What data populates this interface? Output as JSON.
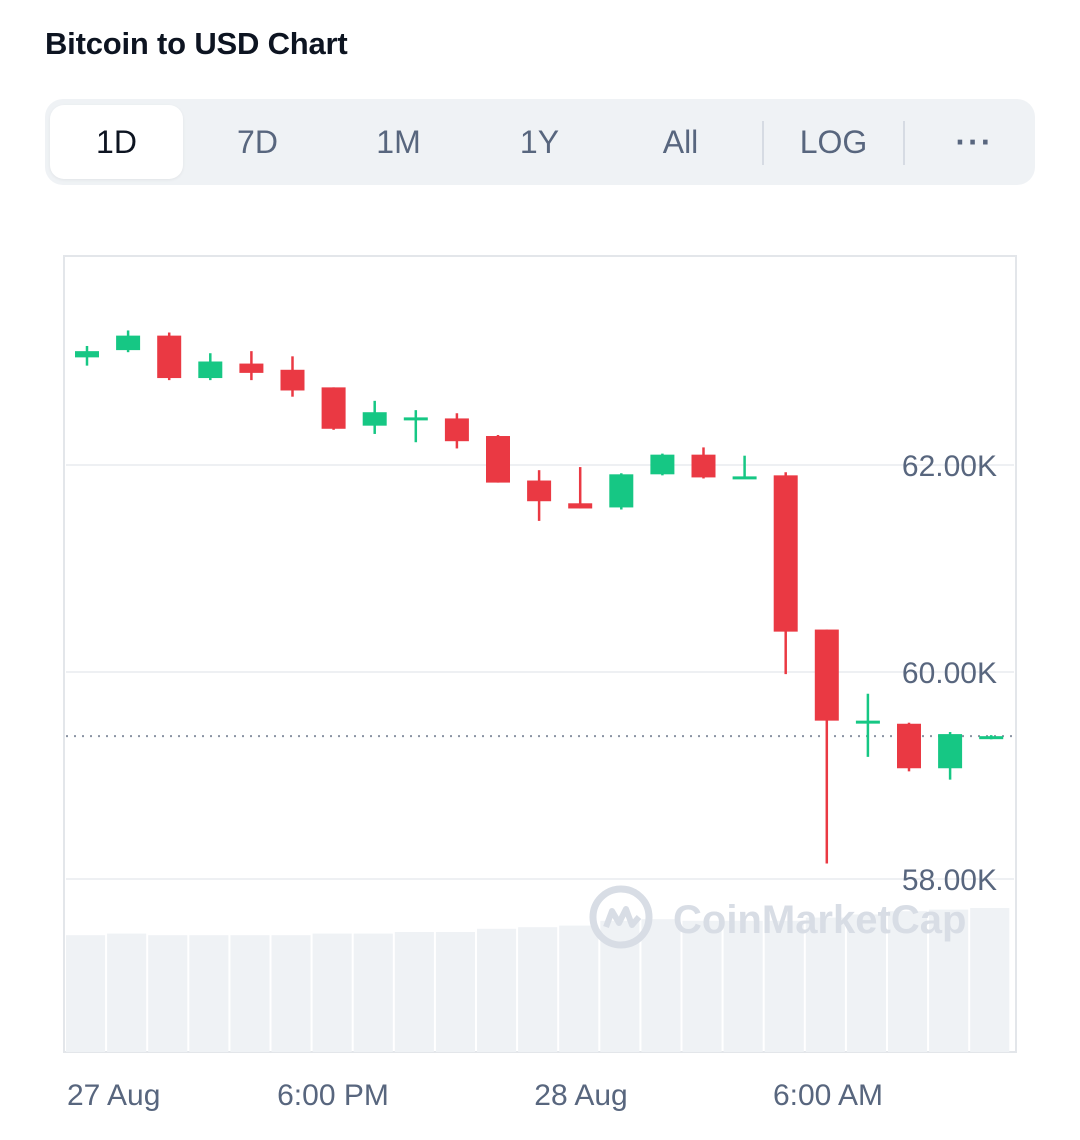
{
  "header": {
    "title": "Bitcoin to USD Chart"
  },
  "range_tabs": [
    {
      "label": "1D",
      "active": true
    },
    {
      "label": "7D",
      "active": false
    },
    {
      "label": "1M",
      "active": false
    },
    {
      "label": "1Y",
      "active": false
    },
    {
      "label": "All",
      "active": false
    }
  ],
  "scale_toggle": {
    "label": "LOG"
  },
  "more_menu": {
    "label": "···",
    "icon": "more-horizontal-icon"
  },
  "watermark": {
    "text": "CoinMarketCap",
    "icon": "coinmarketcap-logo-icon"
  },
  "colors": {
    "up": "#16c784",
    "down": "#ea3943",
    "grid": "#eef0f3",
    "axis_text": "#58667e",
    "volume": "#eff2f5"
  },
  "chart_data": {
    "type": "candlestick",
    "title": "Bitcoin to USD Chart",
    "y_axis": {
      "side": "right",
      "ticks": [
        "62.00K",
        "60.00K",
        "58.00K"
      ],
      "tick_values": [
        62000,
        60000,
        58000
      ],
      "range": [
        57700,
        64000
      ]
    },
    "x_axis": {
      "ticks": [
        "27 Aug",
        "6:00 PM",
        "28 Aug",
        "6:00 AM"
      ]
    },
    "current_price_line": 59380,
    "grid": true,
    "candles": [
      {
        "o": 63040,
        "h": 63150,
        "l": 62960,
        "c": 63100
      },
      {
        "o": 63110,
        "h": 63300,
        "l": 63090,
        "c": 63250
      },
      {
        "o": 63250,
        "h": 63280,
        "l": 62820,
        "c": 62840
      },
      {
        "o": 62840,
        "h": 63080,
        "l": 62820,
        "c": 63000
      },
      {
        "o": 62980,
        "h": 63100,
        "l": 62820,
        "c": 62890
      },
      {
        "o": 62920,
        "h": 63050,
        "l": 62660,
        "c": 62720
      },
      {
        "o": 62750,
        "h": 62750,
        "l": 62340,
        "c": 62350
      },
      {
        "o": 62380,
        "h": 62620,
        "l": 62300,
        "c": 62510
      },
      {
        "o": 62460,
        "h": 62530,
        "l": 62220,
        "c": 62460
      },
      {
        "o": 62450,
        "h": 62500,
        "l": 62160,
        "c": 62230
      },
      {
        "o": 62280,
        "h": 62290,
        "l": 61830,
        "c": 61830
      },
      {
        "o": 61850,
        "h": 61950,
        "l": 61460,
        "c": 61650
      },
      {
        "o": 61630,
        "h": 61980,
        "l": 61580,
        "c": 61580
      },
      {
        "o": 61590,
        "h": 61920,
        "l": 61570,
        "c": 61910
      },
      {
        "o": 61910,
        "h": 62110,
        "l": 61900,
        "c": 62100
      },
      {
        "o": 62100,
        "h": 62170,
        "l": 61870,
        "c": 61880
      },
      {
        "o": 61880,
        "h": 62090,
        "l": 61870,
        "c": 61890
      },
      {
        "o": 61900,
        "h": 61930,
        "l": 59980,
        "c": 60390
      },
      {
        "o": 60410,
        "h": 60410,
        "l": 58150,
        "c": 59530
      },
      {
        "o": 59530,
        "h": 59790,
        "l": 59180,
        "c": 59530
      },
      {
        "o": 59500,
        "h": 59510,
        "l": 59040,
        "c": 59070
      },
      {
        "o": 59070,
        "h": 59420,
        "l": 58960,
        "c": 59400
      },
      {
        "o": 59360,
        "h": 59390,
        "l": 59350,
        "c": 59380
      }
    ],
    "volume": [
      0.73,
      0.74,
      0.73,
      0.73,
      0.73,
      0.73,
      0.74,
      0.74,
      0.75,
      0.75,
      0.77,
      0.78,
      0.79,
      0.82,
      0.83,
      0.82,
      0.82,
      0.82,
      0.84,
      0.86,
      0.88,
      0.89,
      0.9
    ]
  }
}
